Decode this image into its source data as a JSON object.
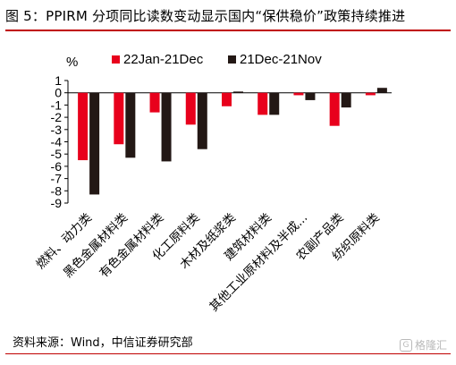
{
  "header": {
    "title": "图 5：PPIRM 分项同比读数变动显示国内“保供稳价”政策持续推进"
  },
  "footer": {
    "source": "资料来源：Wind，中信证券研究部",
    "brand": "格隆汇"
  },
  "chart_data": {
    "type": "bar",
    "ylabel": "%",
    "ylim": [
      -9,
      1
    ],
    "yticks": [
      1,
      0,
      -1,
      -2,
      -3,
      -4,
      -5,
      -6,
      -7,
      -8,
      -9
    ],
    "legend_position": "top",
    "categories": [
      "燃料、动力类",
      "黑色金属材料类",
      "有色金属材料类",
      "化工原料类",
      "木材及纸浆类",
      "建筑材料类",
      "其他工业原材料及半成...",
      "农副产品类",
      "纺织原料类"
    ],
    "series": [
      {
        "name": "22Jan-21Dec",
        "color": "#e8001c",
        "values": [
          -5.5,
          -4.2,
          -1.6,
          -2.6,
          -1.1,
          -1.8,
          -0.2,
          -2.7,
          -0.2
        ]
      },
      {
        "name": "21Dec-21Nov",
        "color": "#231815",
        "values": [
          -8.3,
          -5.3,
          -5.6,
          -4.6,
          0.1,
          -1.8,
          -0.6,
          -1.2,
          0.4
        ]
      }
    ]
  }
}
